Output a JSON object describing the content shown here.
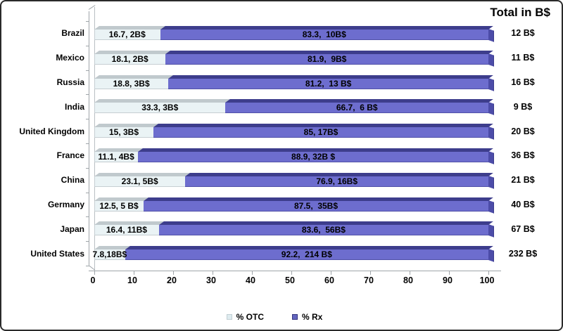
{
  "title": "Total in B$",
  "legend": [
    {
      "label": "% OTC",
      "color": "#dfecf0",
      "border": "#c2cfd4"
    },
    {
      "label": "% Rx",
      "color": "#6466c0",
      "border": "#35357e"
    }
  ],
  "colors": {
    "otc_fill": "#eaf3f5",
    "otc_top": "#c0c9cd",
    "rx_fill": "#6d6dce",
    "rx_top": "#3d3d8c",
    "rx_cap": "#4c4ca8",
    "axis": "#9fa5a9",
    "text": "#000000",
    "frame_border": "#2a2a2a"
  },
  "chart_data": {
    "type": "bar",
    "orientation": "horizontal",
    "stacked": true,
    "title": "Total in B$",
    "xlabel": "",
    "ylabel": "",
    "xlim": [
      0,
      100
    ],
    "grid": false,
    "legend_position": "bottom",
    "categories": [
      "Brazil",
      "Mexico",
      "Russia",
      "India",
      "United Kingdom",
      "France",
      "China",
      "Germany",
      "Japan",
      "United States"
    ],
    "series": [
      {
        "name": "% OTC",
        "values": [
          16.7,
          18.1,
          18.8,
          33.3,
          15,
          11.1,
          23.1,
          12.5,
          16.4,
          7.8
        ],
        "labels": [
          "16.7, 2B$",
          "18.1, 2B$",
          "18.8, 3B$",
          "33.3, 3B$",
          "15, 3B$",
          "11.1, 4B$",
          "23.1, 5B$",
          "12.5, 5 B$",
          "16.4, 11B$",
          "7.8,18B$"
        ]
      },
      {
        "name": "% Rx",
        "values": [
          83.3,
          81.9,
          81.2,
          66.7,
          85,
          88.9,
          76.9,
          87.5,
          83.6,
          92.2
        ],
        "labels": [
          "83.3,  10B$",
          "81.9,  9B$",
          "81.2,  13 B$",
          "66.7,  6 B$",
          "85, 17B$",
          "88.9, 32B $",
          "76.9, 16B$",
          "87.5,  35B$",
          "83.6,  56B$",
          "92.2,  214 B$"
        ]
      }
    ],
    "totals": [
      "12 B$",
      "11 B$",
      "16 B$",
      "9 B$",
      "20 B$",
      "36 B$",
      "21 B$",
      "40 B$",
      "67 B$",
      "232 B$"
    ],
    "xticks": [
      "0",
      "10",
      "20",
      "30",
      "40",
      "50",
      "60",
      "70",
      "80",
      "90",
      "100"
    ]
  }
}
